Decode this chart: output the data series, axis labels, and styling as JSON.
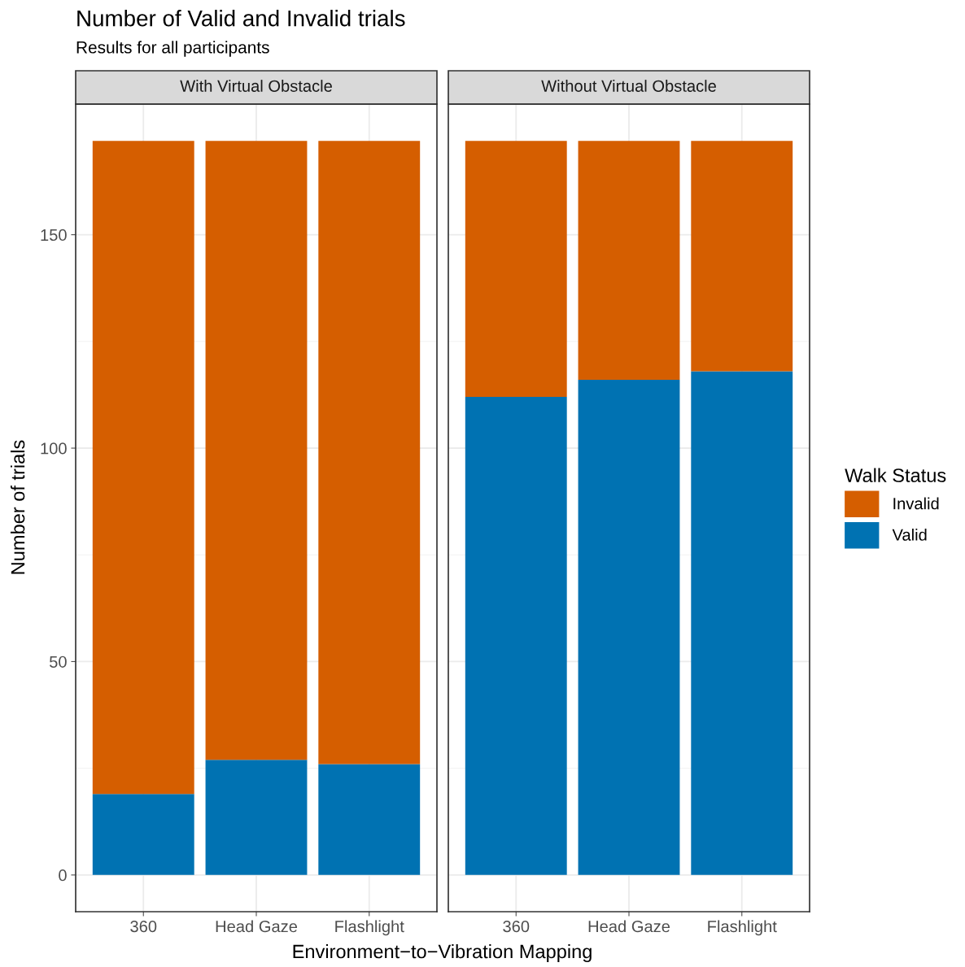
{
  "chart_data": [
    {
      "type": "bar",
      "stacked": true,
      "title": "With Virtual Obstacle",
      "annotations": [
        "Number of Valid and Invalid trials",
        "Results for all participants"
      ],
      "xlabel": "Environment−to−Vibration Mapping",
      "ylabel": "Number of trials",
      "legend_title": "Walk Status",
      "legend": "right",
      "categories": [
        "360",
        "Head Gaze",
        "Flashlight"
      ],
      "series": [
        {
          "name": "Valid",
          "color": "#0072b2",
          "values": [
            19,
            27,
            26
          ]
        },
        {
          "name": "Invalid",
          "color": "#d55e00",
          "values": [
            153,
            145,
            146
          ]
        }
      ],
      "ylim": [
        -8.6,
        180.6
      ],
      "yticks": [
        0,
        50,
        100,
        150
      ],
      "grid": true
    },
    {
      "type": "bar",
      "stacked": true,
      "title": "Without Virtual Obstacle",
      "tick_labels": "x",
      "categories": [
        "360",
        "Head Gaze",
        "Flashlight"
      ],
      "series": [
        {
          "color": "#0072b2",
          "values": [
            112,
            116,
            118
          ]
        },
        {
          "color": "#d55e00",
          "values": [
            60,
            56,
            54
          ]
        }
      ],
      "ylim": [
        -8.6,
        180.6
      ],
      "yticks": [
        0,
        50,
        100,
        150
      ],
      "grid": true
    }
  ]
}
